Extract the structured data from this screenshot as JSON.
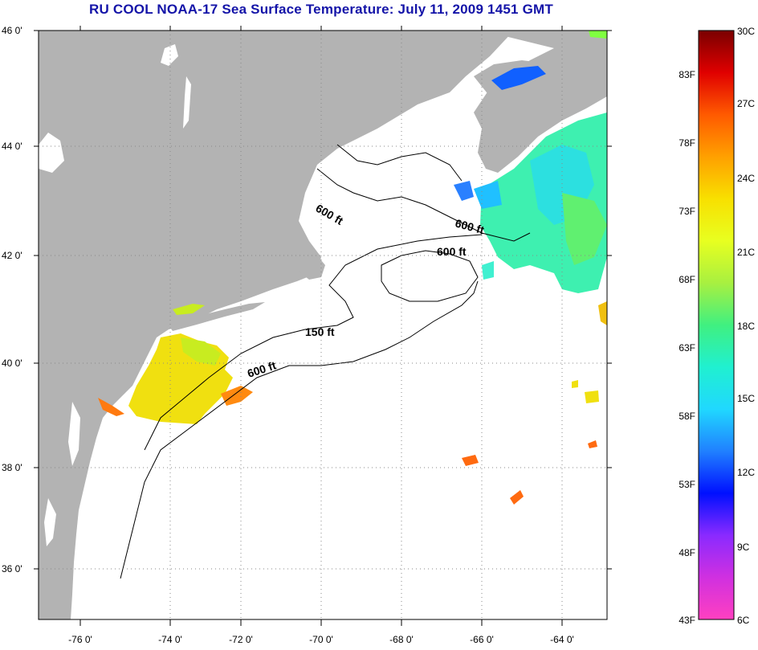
{
  "title": "RU COOL  NOAA-17  Sea Surface Temperature:  July 11, 2009 1451 GMT",
  "map": {
    "lat_labels": [
      "46 0'",
      "44 0'",
      "42 0'",
      "40 0'",
      "38 0'",
      "36 0'"
    ],
    "lon_labels": [
      "-76 0'",
      "-74 0'",
      "-72 0'",
      "-70 0'",
      "-68 0'",
      "-66 0'",
      "-64 0'"
    ],
    "depth_labels": [
      "600 ft",
      "600 ft",
      "600 ft",
      "150 ft",
      "600 ft"
    ],
    "colors": {
      "land": "#b3b3b3",
      "ocean": "#ffffff",
      "grid": "#8a8a8a"
    }
  },
  "colorbar": {
    "fahrenheit_labels": [
      "83F",
      "78F",
      "73F",
      "68F",
      "63F",
      "58F",
      "53F",
      "48F",
      "43F"
    ],
    "celsius_labels": [
      "30C",
      "27C",
      "24C",
      "21C",
      "18C",
      "15C",
      "12C",
      "9C",
      "6C"
    ],
    "stops": [
      "#7a0000",
      "#e00000",
      "#ff5a00",
      "#ffa000",
      "#f8e000",
      "#e8ff20",
      "#a8f040",
      "#40f080",
      "#20f0d0",
      "#20d8ff",
      "#2080ff",
      "#0010ff",
      "#8a2aff",
      "#d030e0",
      "#ff40c0"
    ]
  }
}
